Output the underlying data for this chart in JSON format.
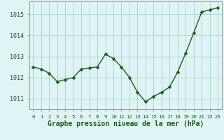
{
  "x": [
    0,
    1,
    2,
    3,
    4,
    5,
    6,
    7,
    8,
    9,
    10,
    11,
    12,
    13,
    14,
    15,
    16,
    17,
    18,
    19,
    20,
    21,
    22,
    23
  ],
  "y": [
    1012.5,
    1012.4,
    1012.2,
    1011.8,
    1011.9,
    1012.0,
    1012.4,
    1012.45,
    1012.5,
    1013.1,
    1012.9,
    1012.5,
    1012.0,
    1011.3,
    1010.85,
    1011.1,
    1011.3,
    1011.55,
    1012.25,
    1013.15,
    1014.1,
    1015.1,
    1015.2,
    1015.3
  ],
  "line_color": "#1a5c1a",
  "marker": "D",
  "marker_size": 2.5,
  "bg_color": "#dff4f4",
  "grid_color": "#aacfcf",
  "xlabel": "Graphe pression niveau de la mer (hPa)",
  "ylim": [
    1010.5,
    1015.6
  ],
  "xlim": [
    -0.5,
    23.5
  ],
  "yticks": [
    1011,
    1012,
    1013,
    1014,
    1015
  ],
  "xticks": [
    0,
    1,
    2,
    3,
    4,
    5,
    6,
    7,
    8,
    9,
    10,
    11,
    12,
    13,
    14,
    15,
    16,
    17,
    18,
    19,
    20,
    21,
    22,
    23
  ],
  "xtick_labels": [
    "0",
    "1",
    "2",
    "3",
    "4",
    "5",
    "6",
    "7",
    "8",
    "9",
    "10",
    "11",
    "12",
    "13",
    "14",
    "15",
    "16",
    "17",
    "18",
    "19",
    "20",
    "21",
    "22",
    "23"
  ],
  "spine_color": "#888888",
  "tick_label_color": "#1a5c1a",
  "xlabel_color": "#1a5c1a"
}
